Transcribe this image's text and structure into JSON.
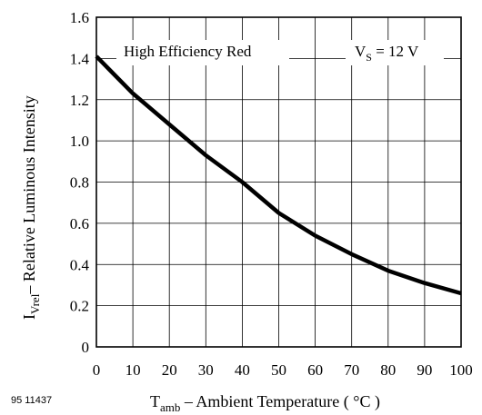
{
  "chart_data": {
    "type": "line",
    "xlabel": {
      "main": "T",
      "sub": "amb",
      "rest": " – Ambient Temperature ( °C )"
    },
    "ylabel": {
      "main": "I",
      "sub": "Vrel",
      "rest": "– Relative Luminous Intensity"
    },
    "xlim": [
      0,
      100
    ],
    "ylim": [
      0,
      1.6
    ],
    "x_ticks": [
      "0",
      "10",
      "20",
      "30",
      "40",
      "50",
      "60",
      "70",
      "80",
      "90",
      "100"
    ],
    "y_ticks": [
      "0",
      "0.2",
      "0.4",
      "0.6",
      "0.8",
      "1.0",
      "1.2",
      "1.4",
      "1.6"
    ],
    "grid": true,
    "series": [
      {
        "x": [
          0,
          5,
          10,
          20,
          30,
          40,
          50,
          60,
          70,
          80,
          90,
          100
        ],
        "y": [
          1.41,
          1.32,
          1.23,
          1.08,
          0.93,
          0.8,
          0.65,
          0.54,
          0.45,
          0.37,
          0.31,
          0.26
        ]
      }
    ],
    "annotations": {
      "left": "High Efficiency Red",
      "right": {
        "main": "V",
        "sub": "S",
        "rest": " = 12 V"
      }
    },
    "figure_id": "95 11437"
  }
}
